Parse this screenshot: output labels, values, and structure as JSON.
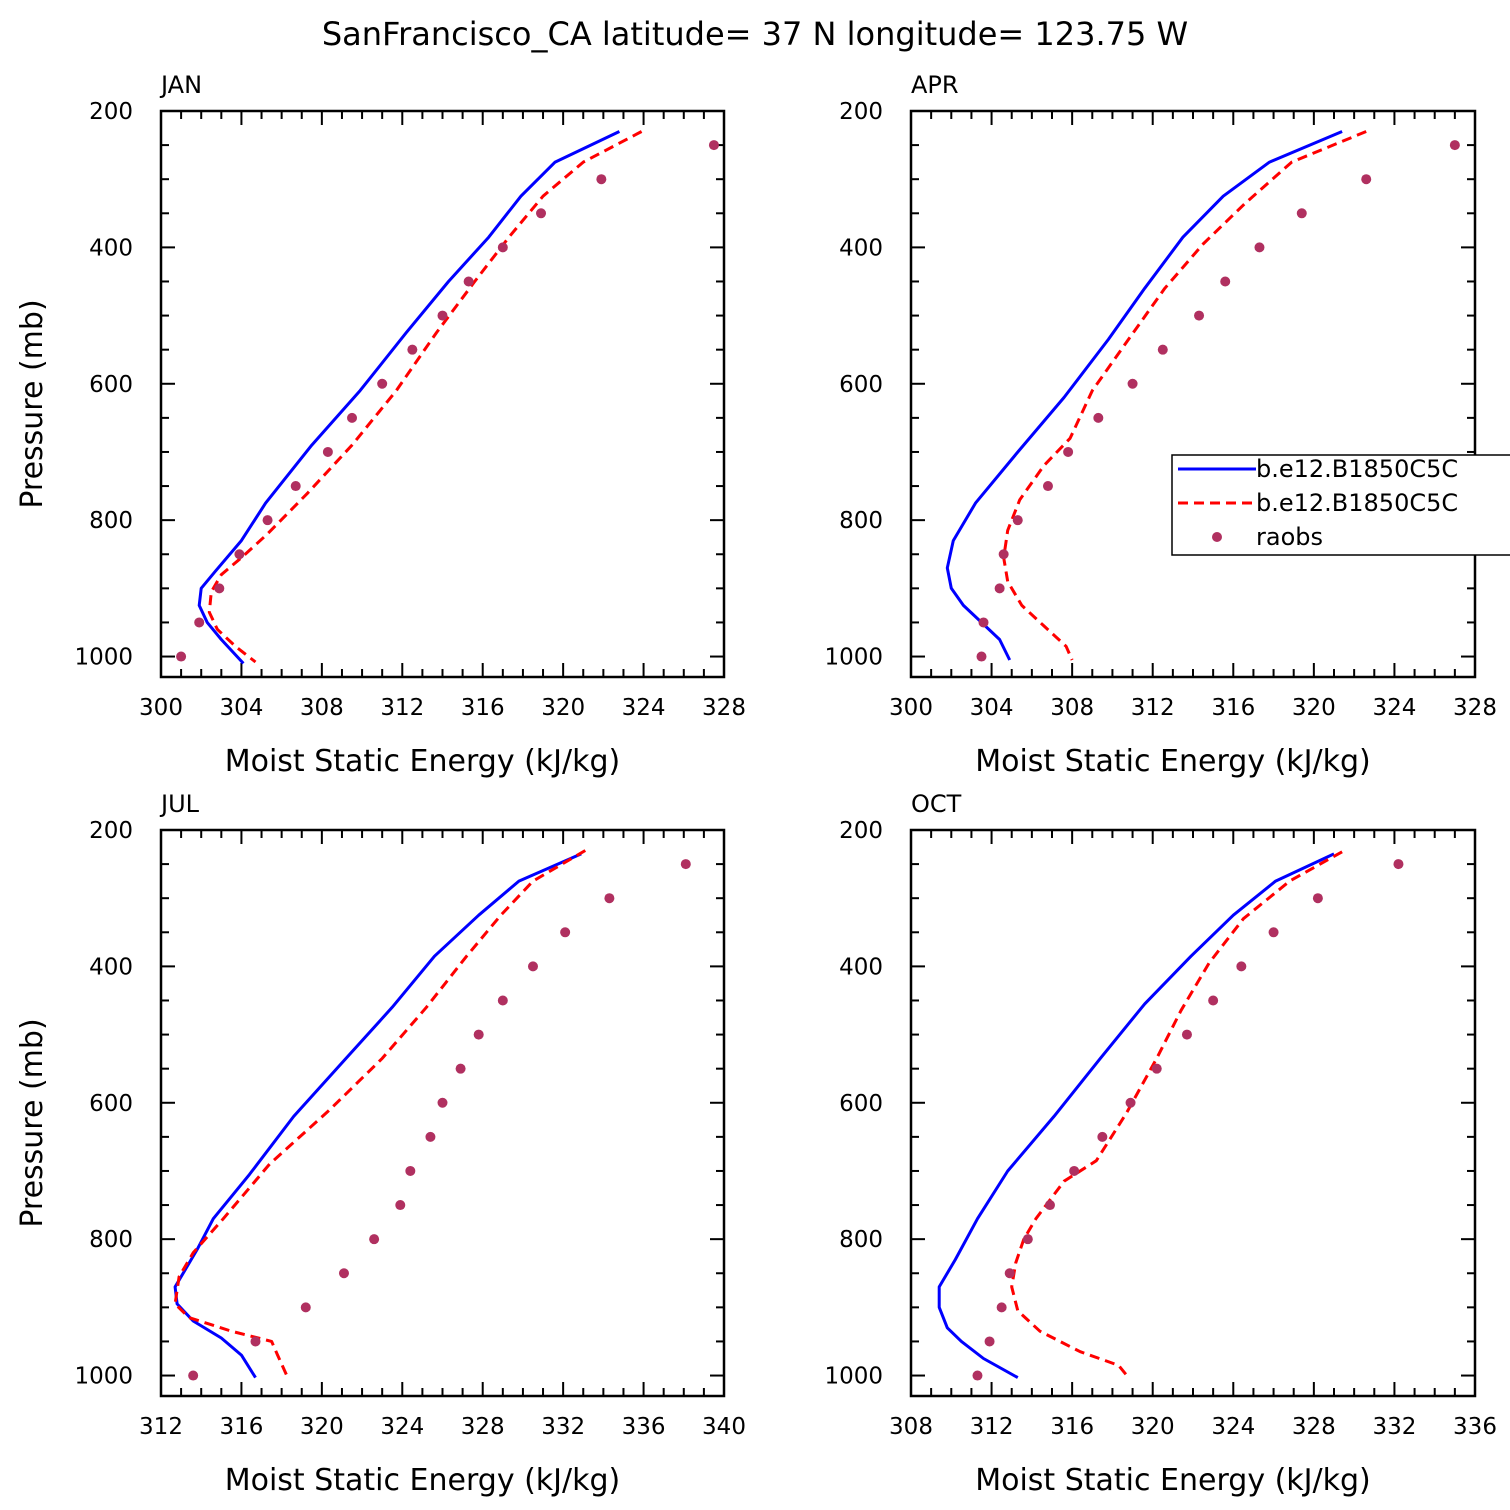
{
  "figure": {
    "title": "SanFrancisco_CA  latitude= 37 N longitude= 123.75 W"
  },
  "legend": {
    "entries": [
      {
        "label": "b.e12.B1850C5C",
        "color": "#0000ff",
        "style": "solid"
      },
      {
        "label": "b.e12.B1850C5C",
        "color": "#ff0000",
        "style": "dashed"
      },
      {
        "label": "raobs",
        "color": "#b03060",
        "style": "marker"
      }
    ]
  },
  "colors": {
    "model_blue": "#0000ff",
    "model_red": "#ff0000",
    "raobs": "#b03060"
  },
  "chart_data": [
    {
      "type": "line",
      "title": "JAN",
      "xlabel": "Moist Static Energy (kJ/kg)",
      "ylabel": "Pressure (mb)",
      "xlim": [
        300,
        328
      ],
      "ylim": [
        1000,
        200
      ],
      "y_inverted": true,
      "xticks": [
        300,
        304,
        308,
        312,
        316,
        320,
        324,
        328
      ],
      "yticks": [
        200,
        400,
        600,
        800,
        1000
      ],
      "series": [
        {
          "name": "b.e12.B1850C5C",
          "style": "solid",
          "color": "#0000ff",
          "x": [
            322.8,
            319.6,
            317.9,
            316.3,
            314.3,
            312.2,
            309.9,
            307.5,
            305.2,
            304.0,
            302.7,
            302.0,
            301.9,
            302.3,
            303.0,
            304.1
          ],
          "y": [
            230,
            275,
            325,
            385,
            450,
            525,
            610,
            690,
            775,
            830,
            875,
            900,
            925,
            950,
            975,
            1010
          ]
        },
        {
          "name": "b.e12.B1850C5C",
          "style": "dashed",
          "color": "#ff0000",
          "x": [
            323.9,
            321.0,
            319.0,
            317.3,
            315.6,
            313.7,
            311.7,
            309.5,
            307.3,
            305.3,
            304.0,
            303.0,
            302.5,
            302.4,
            302.8,
            303.7,
            304.7
          ],
          "y": [
            230,
            275,
            325,
            385,
            450,
            525,
            610,
            690,
            760,
            820,
            855,
            880,
            905,
            935,
            960,
            985,
            1008
          ]
        },
        {
          "name": "raobs",
          "style": "marker",
          "color": "#b03060",
          "x": [
            327.5,
            321.9,
            318.9,
            317.0,
            315.3,
            314.0,
            312.5,
            311.0,
            309.5,
            308.3,
            306.7,
            305.3,
            303.9,
            302.9,
            301.9,
            301.0
          ],
          "y": [
            250,
            300,
            350,
            400,
            450,
            500,
            550,
            600,
            650,
            700,
            750,
            800,
            850,
            900,
            950,
            1000
          ]
        }
      ]
    },
    {
      "type": "line",
      "title": "APR",
      "xlabel": "Moist Static Energy (kJ/kg)",
      "ylabel": "",
      "xlim": [
        300,
        328
      ],
      "ylim": [
        1000,
        200
      ],
      "y_inverted": true,
      "xticks": [
        300,
        304,
        308,
        312,
        316,
        320,
        324,
        328
      ],
      "yticks": [
        200,
        400,
        600,
        800,
        1000
      ],
      "series": [
        {
          "name": "b.e12.B1850C5C",
          "style": "solid",
          "color": "#0000ff",
          "x": [
            321.4,
            317.8,
            315.5,
            313.5,
            311.6,
            309.8,
            307.6,
            305.3,
            303.2,
            302.1,
            301.8,
            302.0,
            302.6,
            303.5,
            304.4,
            304.9
          ],
          "y": [
            230,
            275,
            325,
            385,
            460,
            535,
            620,
            700,
            775,
            830,
            870,
            900,
            925,
            950,
            975,
            1005
          ]
        },
        {
          "name": "b.e12.B1850C5C",
          "style": "dashed",
          "color": "#ff0000",
          "x": [
            322.6,
            318.9,
            316.6,
            314.5,
            312.6,
            310.8,
            309.0,
            307.9,
            306.6,
            305.4,
            304.8,
            304.6,
            304.8,
            305.5,
            306.6,
            307.7,
            308.0
          ],
          "y": [
            230,
            275,
            335,
            395,
            460,
            535,
            610,
            680,
            720,
            770,
            815,
            855,
            890,
            925,
            955,
            985,
            1005
          ]
        },
        {
          "name": "raobs",
          "style": "marker",
          "color": "#b03060",
          "x": [
            327.0,
            322.6,
            319.4,
            317.3,
            315.6,
            314.3,
            312.5,
            311.0,
            309.3,
            307.8,
            306.8,
            305.3,
            304.6,
            304.4,
            303.6,
            303.5
          ],
          "y": [
            250,
            300,
            350,
            400,
            450,
            500,
            550,
            600,
            650,
            700,
            750,
            800,
            850,
            900,
            950,
            1000
          ]
        }
      ]
    },
    {
      "type": "line",
      "title": "JUL",
      "xlabel": "Moist Static Energy (kJ/kg)",
      "ylabel": "Pressure (mb)",
      "xlim": [
        312,
        340
      ],
      "ylim": [
        1000,
        200
      ],
      "y_inverted": true,
      "xticks": [
        312,
        316,
        320,
        324,
        328,
        332,
        336,
        340
      ],
      "yticks": [
        200,
        400,
        600,
        800,
        1000
      ],
      "series": [
        {
          "name": "b.e12.B1850C5C",
          "style": "solid",
          "color": "#0000ff",
          "x": [
            332.9,
            329.8,
            327.8,
            325.6,
            323.5,
            321.2,
            318.6,
            316.4,
            314.6,
            313.8,
            312.7,
            312.8,
            313.6,
            315.0,
            316.0,
            316.7
          ],
          "y": [
            235,
            275,
            325,
            385,
            460,
            535,
            620,
            705,
            770,
            815,
            870,
            895,
            920,
            945,
            970,
            1003
          ]
        },
        {
          "name": "b.e12.B1850C5C",
          "style": "dashed",
          "color": "#ff0000",
          "x": [
            333.1,
            330.5,
            328.9,
            327.2,
            325.2,
            323.0,
            320.4,
            317.4,
            315.1,
            313.6,
            312.9,
            312.7,
            313.4,
            315.5,
            317.5,
            317.8,
            318.3
          ],
          "y": [
            230,
            275,
            325,
            385,
            460,
            535,
            610,
            690,
            770,
            820,
            855,
            895,
            915,
            935,
            950,
            970,
            1003
          ]
        },
        {
          "name": "raobs",
          "style": "marker",
          "color": "#b03060",
          "x": [
            338.1,
            334.3,
            332.1,
            330.5,
            329.0,
            327.8,
            326.9,
            326.0,
            325.4,
            324.4,
            323.9,
            322.6,
            321.1,
            319.2,
            316.7,
            313.6
          ],
          "y": [
            250,
            300,
            350,
            400,
            450,
            500,
            550,
            600,
            650,
            700,
            750,
            800,
            850,
            900,
            950,
            1000
          ]
        }
      ]
    },
    {
      "type": "line",
      "title": "OCT",
      "xlabel": "Moist Static Energy (kJ/kg)",
      "ylabel": "",
      "xlim": [
        308,
        336
      ],
      "ylim": [
        1000,
        200
      ],
      "y_inverted": true,
      "xticks": [
        308,
        312,
        316,
        320,
        324,
        328,
        332,
        336
      ],
      "yticks": [
        200,
        400,
        600,
        800,
        1000
      ],
      "series": [
        {
          "name": "b.e12.B1850C5C",
          "style": "solid",
          "color": "#0000ff",
          "x": [
            329.0,
            326.1,
            324.0,
            321.9,
            319.6,
            317.4,
            315.1,
            312.8,
            311.3,
            310.2,
            309.4,
            309.4,
            309.8,
            310.5,
            311.6,
            313.3
          ],
          "y": [
            235,
            275,
            325,
            385,
            455,
            535,
            620,
            700,
            770,
            830,
            870,
            900,
            930,
            950,
            975,
            1003
          ]
        },
        {
          "name": "b.e12.B1850C5C",
          "style": "dashed",
          "color": "#ff0000",
          "x": [
            329.4,
            326.8,
            324.5,
            322.8,
            321.4,
            320.2,
            318.7,
            317.2,
            315.6,
            314.2,
            313.6,
            313.2,
            313.0,
            313.3,
            314.4,
            316.4,
            318.3,
            318.8
          ],
          "y": [
            232,
            275,
            330,
            395,
            465,
            535,
            615,
            685,
            715,
            770,
            800,
            835,
            870,
            905,
            935,
            965,
            985,
            1003
          ]
        },
        {
          "name": "raobs",
          "style": "marker",
          "color": "#b03060",
          "x": [
            332.2,
            328.2,
            326.0,
            324.4,
            323.0,
            321.7,
            320.2,
            318.9,
            317.5,
            316.1,
            314.9,
            313.8,
            312.9,
            312.5,
            311.9,
            311.3
          ],
          "y": [
            250,
            300,
            350,
            400,
            450,
            500,
            550,
            600,
            650,
            700,
            750,
            800,
            850,
            900,
            950,
            1000
          ]
        }
      ]
    }
  ]
}
